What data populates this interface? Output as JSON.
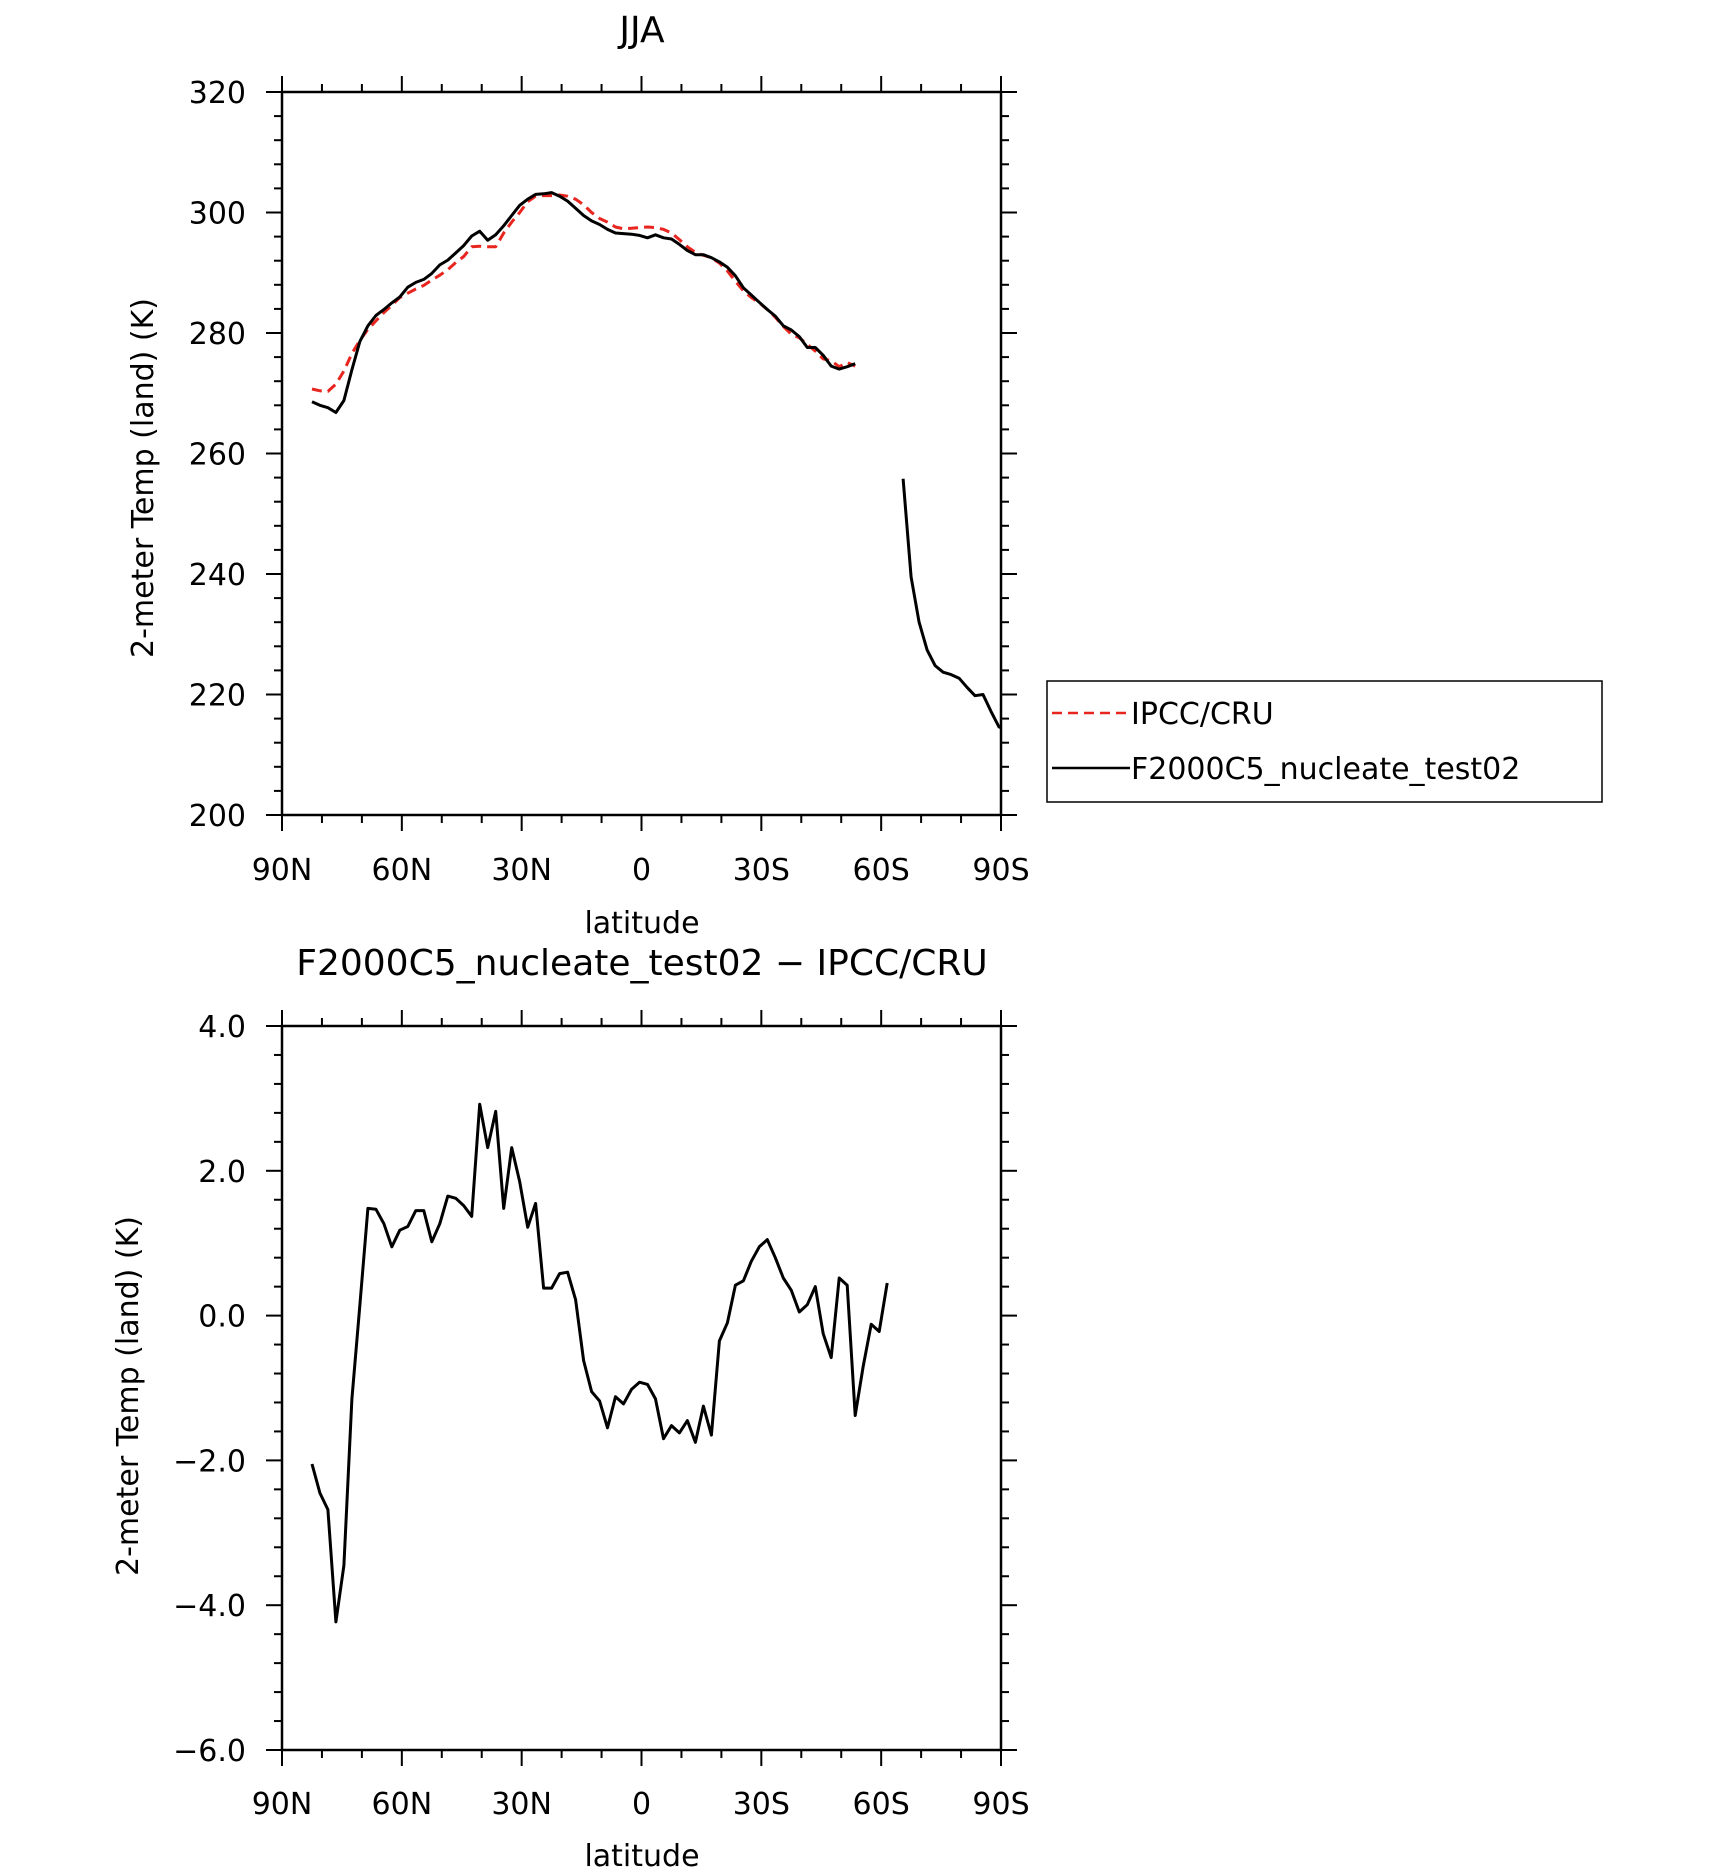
{
  "chart_data": [
    {
      "type": "line",
      "title": "JJA",
      "xlabel": "latitude",
      "ylabel": "2-meter Temp (land) (K)",
      "xlim": [
        90,
        -90
      ],
      "ylim": [
        200,
        320
      ],
      "x_ticks": [
        {
          "value": 90,
          "label": "90N"
        },
        {
          "value": 60,
          "label": "60N"
        },
        {
          "value": 30,
          "label": "30N"
        },
        {
          "value": 0,
          "label": "0"
        },
        {
          "value": -30,
          "label": "30S"
        },
        {
          "value": -60,
          "label": "60S"
        },
        {
          "value": -90,
          "label": "90S"
        }
      ],
      "y_ticks": [
        {
          "value": 200,
          "label": "200"
        },
        {
          "value": 220,
          "label": "220"
        },
        {
          "value": 240,
          "label": "240"
        },
        {
          "value": 260,
          "label": "260"
        },
        {
          "value": 280,
          "label": "280"
        },
        {
          "value": 300,
          "label": "300"
        },
        {
          "value": 320,
          "label": "320"
        }
      ],
      "grid": false,
      "legend_position": "right",
      "series": [
        {
          "name": "IPCC/CRU",
          "color": "#e8261f",
          "dash": "dashed",
          "points": [
            [
              82.5,
              270.7
            ],
            [
              80.5,
              270.4
            ],
            [
              78.5,
              270.3
            ],
            [
              76.5,
              271.5
            ],
            [
              74.5,
              273.7
            ],
            [
              72.5,
              276.6
            ],
            [
              70.5,
              278.8
            ],
            [
              68.5,
              280.6
            ],
            [
              66.5,
              282.0
            ],
            [
              64.5,
              283.4
            ],
            [
              62.5,
              284.6
            ],
            [
              60.5,
              285.9
            ],
            [
              58.5,
              286.6
            ],
            [
              56.5,
              287.3
            ],
            [
              54.5,
              287.9
            ],
            [
              52.5,
              288.8
            ],
            [
              50.5,
              289.6
            ],
            [
              48.5,
              290.5
            ],
            [
              46.5,
              291.7
            ],
            [
              44.5,
              292.7
            ],
            [
              42.5,
              294.3
            ],
            [
              40.5,
              294.4
            ],
            [
              38.5,
              294.3
            ],
            [
              36.5,
              294.3
            ],
            [
              34.5,
              296.6
            ],
            [
              32.5,
              298.4
            ],
            [
              30.5,
              300.0
            ],
            [
              28.5,
              301.8
            ],
            [
              26.5,
              302.7
            ],
            [
              24.5,
              302.8
            ],
            [
              22.5,
              302.8
            ],
            [
              20.5,
              302.9
            ],
            [
              18.5,
              302.7
            ],
            [
              16.5,
              302.2
            ],
            [
              14.5,
              301.3
            ],
            [
              12.5,
              300.0
            ],
            [
              10.5,
              299.0
            ],
            [
              8.5,
              298.4
            ],
            [
              6.5,
              297.6
            ],
            [
              4.5,
              297.3
            ],
            [
              2.5,
              297.4
            ],
            [
              0.5,
              297.5
            ],
            [
              -1.5,
              297.6
            ],
            [
              -3.5,
              297.5
            ],
            [
              -5.5,
              297.2
            ],
            [
              -7.5,
              296.6
            ],
            [
              -9.5,
              295.5
            ],
            [
              -11.5,
              294.3
            ],
            [
              -13.5,
              293.4
            ],
            [
              -15.5,
              292.9
            ],
            [
              -17.5,
              292.5
            ],
            [
              -19.5,
              291.6
            ],
            [
              -21.5,
              290.3
            ],
            [
              -23.5,
              288.6
            ],
            [
              -25.5,
              287.0
            ],
            [
              -27.5,
              285.9
            ],
            [
              -29.5,
              285.0
            ],
            [
              -31.5,
              283.9
            ],
            [
              -33.5,
              282.6
            ],
            [
              -35.5,
              281.1
            ],
            [
              -37.5,
              279.8
            ],
            [
              -39.5,
              279.2
            ],
            [
              -41.5,
              278.1
            ],
            [
              -43.5,
              277.0
            ],
            [
              -45.5,
              275.7
            ],
            [
              -47.5,
              275.4
            ],
            [
              -49.5,
              274.4
            ],
            [
              -51.5,
              275.1
            ],
            [
              -53.5,
              274.5
            ]
          ]
        },
        {
          "name": "F2000C5_nucleate_test02",
          "color": "#000000",
          "dash": "solid",
          "points": [
            [
              82.5,
              268.6
            ],
            [
              80.5,
              268.0
            ],
            [
              78.5,
              267.6
            ],
            [
              76.5,
              266.8
            ],
            [
              74.5,
              268.8
            ],
            [
              72.5,
              273.9
            ],
            [
              70.5,
              278.6
            ],
            [
              68.5,
              281.2
            ],
            [
              66.5,
              282.9
            ],
            [
              64.5,
              283.9
            ],
            [
              62.5,
              285.0
            ],
            [
              60.5,
              286.0
            ],
            [
              58.5,
              287.6
            ],
            [
              56.5,
              288.4
            ],
            [
              54.5,
              288.9
            ],
            [
              52.5,
              289.9
            ],
            [
              50.5,
              291.3
            ],
            [
              48.5,
              292.1
            ],
            [
              46.5,
              293.3
            ],
            [
              44.5,
              294.5
            ],
            [
              42.5,
              296.1
            ],
            [
              40.5,
              296.9
            ],
            [
              38.5,
              295.4
            ],
            [
              36.5,
              296.3
            ],
            [
              34.5,
              297.8
            ],
            [
              32.5,
              299.5
            ],
            [
              30.5,
              301.2
            ],
            [
              28.5,
              302.2
            ],
            [
              26.5,
              303.0
            ],
            [
              24.5,
              303.1
            ],
            [
              22.5,
              303.3
            ],
            [
              20.5,
              302.7
            ],
            [
              18.5,
              301.9
            ],
            [
              16.5,
              300.7
            ],
            [
              14.5,
              299.5
            ],
            [
              12.5,
              298.6
            ],
            [
              10.5,
              298.0
            ],
            [
              8.5,
              297.2
            ],
            [
              6.5,
              296.6
            ],
            [
              4.5,
              296.5
            ],
            [
              2.5,
              296.4
            ],
            [
              0.5,
              296.2
            ],
            [
              -1.5,
              295.8
            ],
            [
              -3.5,
              296.3
            ],
            [
              -5.5,
              295.8
            ],
            [
              -7.5,
              295.6
            ],
            [
              -9.5,
              294.7
            ],
            [
              -11.5,
              293.7
            ],
            [
              -13.5,
              293.0
            ],
            [
              -15.5,
              293.0
            ],
            [
              -17.5,
              292.5
            ],
            [
              -19.5,
              291.8
            ],
            [
              -21.5,
              290.9
            ],
            [
              -23.5,
              289.5
            ],
            [
              -25.5,
              287.5
            ],
            [
              -27.5,
              286.3
            ],
            [
              -29.5,
              285.1
            ],
            [
              -31.5,
              283.9
            ],
            [
              -33.5,
              282.8
            ],
            [
              -35.5,
              281.2
            ],
            [
              -37.5,
              280.5
            ],
            [
              -39.5,
              279.4
            ],
            [
              -41.5,
              277.6
            ],
            [
              -43.5,
              277.6
            ],
            [
              -45.5,
              276.3
            ],
            [
              -47.5,
              274.5
            ],
            [
              -49.5,
              274.0
            ],
            [
              -51.5,
              274.4
            ],
            [
              -53.5,
              274.9
            ],
            null,
            [
              -65.5,
              255.8
            ],
            [
              -67.5,
              239.5
            ],
            [
              -69.5,
              232.0
            ],
            [
              -71.5,
              227.4
            ],
            [
              -73.5,
              224.8
            ],
            [
              -75.5,
              223.7
            ],
            [
              -77.5,
              223.3
            ],
            [
              -79.5,
              222.7
            ],
            [
              -81.5,
              221.2
            ],
            [
              -83.5,
              219.8
            ],
            [
              -85.5,
              220.0
            ],
            [
              -87.5,
              217.2
            ],
            [
              -89.5,
              214.6
            ],
            [
              -90,
              214.5
            ]
          ]
        }
      ]
    },
    {
      "type": "line",
      "title": "F2000C5_nucleate_test02 − IPCC/CRU",
      "xlabel": "latitude",
      "ylabel": "2-meter Temp (land) (K)",
      "xlim": [
        90,
        -90
      ],
      "ylim": [
        -6.0,
        4.0
      ],
      "x_ticks": [
        {
          "value": 90,
          "label": "90N"
        },
        {
          "value": 60,
          "label": "60N"
        },
        {
          "value": 30,
          "label": "30N"
        },
        {
          "value": 0,
          "label": "0"
        },
        {
          "value": -30,
          "label": "30S"
        },
        {
          "value": -60,
          "label": "60S"
        },
        {
          "value": -90,
          "label": "90S"
        }
      ],
      "y_ticks": [
        {
          "value": -6.0,
          "label": "−6.0"
        },
        {
          "value": -4.0,
          "label": "−4.0"
        },
        {
          "value": -2.0,
          "label": "−2.0"
        },
        {
          "value": 0.0,
          "label": "0.0"
        },
        {
          "value": 2.0,
          "label": "2.0"
        },
        {
          "value": 4.0,
          "label": "4.0"
        }
      ],
      "grid": false,
      "series": [
        {
          "name": "",
          "color": "#000000",
          "dash": "solid",
          "points": [
            [
              82.5,
              -2.05
            ],
            [
              80.5,
              -2.45
            ],
            [
              78.5,
              -2.68
            ],
            [
              76.5,
              -4.23
            ],
            [
              74.5,
              -3.45
            ],
            [
              72.5,
              -1.15
            ],
            [
              70.5,
              0.15
            ],
            [
              68.5,
              1.48
            ],
            [
              66.5,
              1.47
            ],
            [
              64.5,
              1.27
            ],
            [
              62.5,
              0.95
            ],
            [
              60.5,
              1.18
            ],
            [
              58.5,
              1.23
            ],
            [
              56.5,
              1.45
            ],
            [
              54.5,
              1.45
            ],
            [
              52.5,
              1.02
            ],
            [
              50.5,
              1.27
            ],
            [
              48.5,
              1.65
            ],
            [
              46.5,
              1.62
            ],
            [
              44.5,
              1.52
            ],
            [
              42.5,
              1.37
            ],
            [
              40.5,
              2.92
            ],
            [
              38.5,
              2.32
            ],
            [
              36.5,
              2.82
            ],
            [
              34.5,
              1.48
            ],
            [
              32.5,
              2.32
            ],
            [
              30.5,
              1.85
            ],
            [
              28.5,
              1.22
            ],
            [
              26.5,
              1.55
            ],
            [
              24.5,
              0.38
            ],
            [
              22.5,
              0.38
            ],
            [
              20.5,
              0.58
            ],
            [
              18.5,
              0.6
            ],
            [
              16.5,
              0.22
            ],
            [
              14.5,
              -0.62
            ],
            [
              12.5,
              -1.05
            ],
            [
              10.5,
              -1.18
            ],
            [
              8.5,
              -1.55
            ],
            [
              6.5,
              -1.12
            ],
            [
              4.5,
              -1.22
            ],
            [
              2.5,
              -1.02
            ],
            [
              0.5,
              -0.92
            ],
            [
              -1.5,
              -0.95
            ],
            [
              -3.5,
              -1.15
            ],
            [
              -5.5,
              -1.7
            ],
            [
              -7.5,
              -1.52
            ],
            [
              -9.5,
              -1.62
            ],
            [
              -11.5,
              -1.45
            ],
            [
              -13.5,
              -1.75
            ],
            [
              -15.5,
              -1.25
            ],
            [
              -17.5,
              -1.65
            ],
            [
              -19.5,
              -0.35
            ],
            [
              -21.5,
              -0.1
            ],
            [
              -23.5,
              0.42
            ],
            [
              -25.5,
              0.48
            ],
            [
              -27.5,
              0.75
            ],
            [
              -29.5,
              0.95
            ],
            [
              -31.5,
              1.05
            ],
            [
              -33.5,
              0.8
            ],
            [
              -35.5,
              0.52
            ],
            [
              -37.5,
              0.35
            ],
            [
              -39.5,
              0.05
            ],
            [
              -41.5,
              0.15
            ],
            [
              -43.5,
              0.4
            ],
            [
              -45.5,
              -0.25
            ],
            [
              -47.5,
              -0.58
            ],
            [
              -49.5,
              0.52
            ],
            [
              -51.5,
              0.42
            ],
            [
              -53.5,
              -1.38
            ],
            [
              -55.5,
              -0.7
            ],
            [
              -57.5,
              -0.12
            ],
            [
              -59.5,
              -0.22
            ],
            [
              -61.5,
              0.45
            ]
          ]
        }
      ]
    }
  ]
}
